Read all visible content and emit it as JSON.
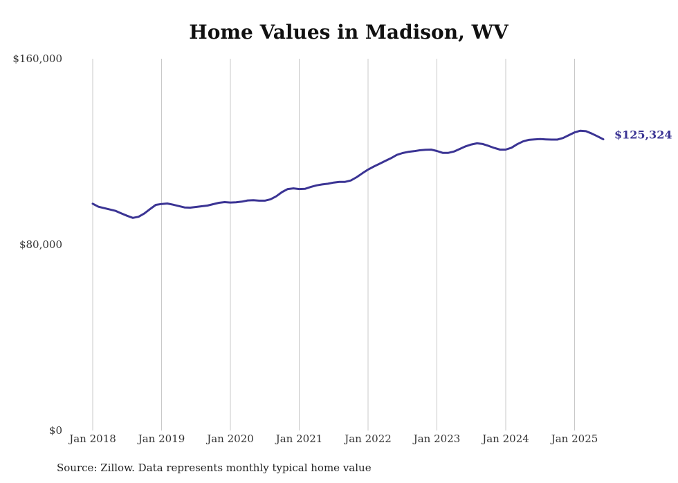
{
  "chart_data": {
    "type": "line",
    "title": "Home Values in Madison, WV",
    "xlabel": "",
    "ylabel": "",
    "ylim": [
      0,
      160000
    ],
    "grid": "vertical",
    "y_tick_labels": [
      "$160,000",
      "$80,000",
      "$0"
    ],
    "y_tick_values": [
      160000,
      80000,
      0
    ],
    "x_tick_labels": [
      "Jan 2018",
      "Jan 2019",
      "Jan 2020",
      "Jan 2021",
      "Jan 2022",
      "Jan 2023",
      "Jan 2024",
      "Jan 2025"
    ],
    "x_tick_values": [
      "2018-01",
      "2019-01",
      "2020-01",
      "2021-01",
      "2022-01",
      "2023-01",
      "2024-01",
      "2025-01"
    ],
    "end_label": "$125,324",
    "line_color": "#3b3494",
    "series": [
      {
        "x": [
          "2018-01",
          "2018-02",
          "2018-03",
          "2018-04",
          "2018-05",
          "2018-06",
          "2018-07",
          "2018-08",
          "2018-09",
          "2018-10",
          "2018-11",
          "2018-12",
          "2019-01",
          "2019-02",
          "2019-03",
          "2019-04",
          "2019-05",
          "2019-06",
          "2019-07",
          "2019-08",
          "2019-09",
          "2019-10",
          "2019-11",
          "2019-12",
          "2020-01",
          "2020-02",
          "2020-03",
          "2020-04",
          "2020-05",
          "2020-06",
          "2020-07",
          "2020-08",
          "2020-09",
          "2020-10",
          "2020-11",
          "2020-12",
          "2021-01",
          "2021-02",
          "2021-03",
          "2021-04",
          "2021-05",
          "2021-06",
          "2021-07",
          "2021-08",
          "2021-09",
          "2021-10",
          "2021-11",
          "2021-12",
          "2022-01",
          "2022-02",
          "2022-03",
          "2022-04",
          "2022-05",
          "2022-06",
          "2022-07",
          "2022-08",
          "2022-09",
          "2022-10",
          "2022-11",
          "2022-12",
          "2023-01",
          "2023-02",
          "2023-03",
          "2023-04",
          "2023-05",
          "2023-06",
          "2023-07",
          "2023-08",
          "2023-09",
          "2023-10",
          "2023-11",
          "2023-12",
          "2024-01",
          "2024-02",
          "2024-03",
          "2024-04",
          "2024-05",
          "2024-06",
          "2024-07",
          "2024-08",
          "2024-09",
          "2024-10",
          "2024-11",
          "2024-12",
          "2025-01",
          "2025-02",
          "2025-03",
          "2025-04",
          "2025-05",
          "2025-06"
        ],
        "values": [
          97600,
          96300,
          95700,
          95100,
          94500,
          93400,
          92400,
          91500,
          92000,
          93400,
          95300,
          97100,
          97500,
          97700,
          97200,
          96600,
          96000,
          95900,
          96200,
          96500,
          96800,
          97400,
          98000,
          98300,
          98100,
          98200,
          98500,
          99000,
          99100,
          98900,
          98900,
          99500,
          100800,
          102600,
          103900,
          104200,
          103900,
          104000,
          104800,
          105500,
          105900,
          106200,
          106700,
          107000,
          107000,
          107600,
          109000,
          110700,
          112300,
          113600,
          114800,
          116000,
          117200,
          118600,
          119400,
          119900,
          120200,
          120600,
          120800,
          120900,
          120300,
          119500,
          119500,
          120100,
          121200,
          122300,
          123100,
          123600,
          123300,
          122500,
          121600,
          120900,
          120900,
          121700,
          123200,
          124400,
          125100,
          125300,
          125400,
          125300,
          125200,
          125200,
          125900,
          127100,
          128300,
          129000,
          128800,
          127800,
          126600,
          125324
        ]
      }
    ]
  },
  "source": "Source: Zillow. Data represents monthly typical home value"
}
